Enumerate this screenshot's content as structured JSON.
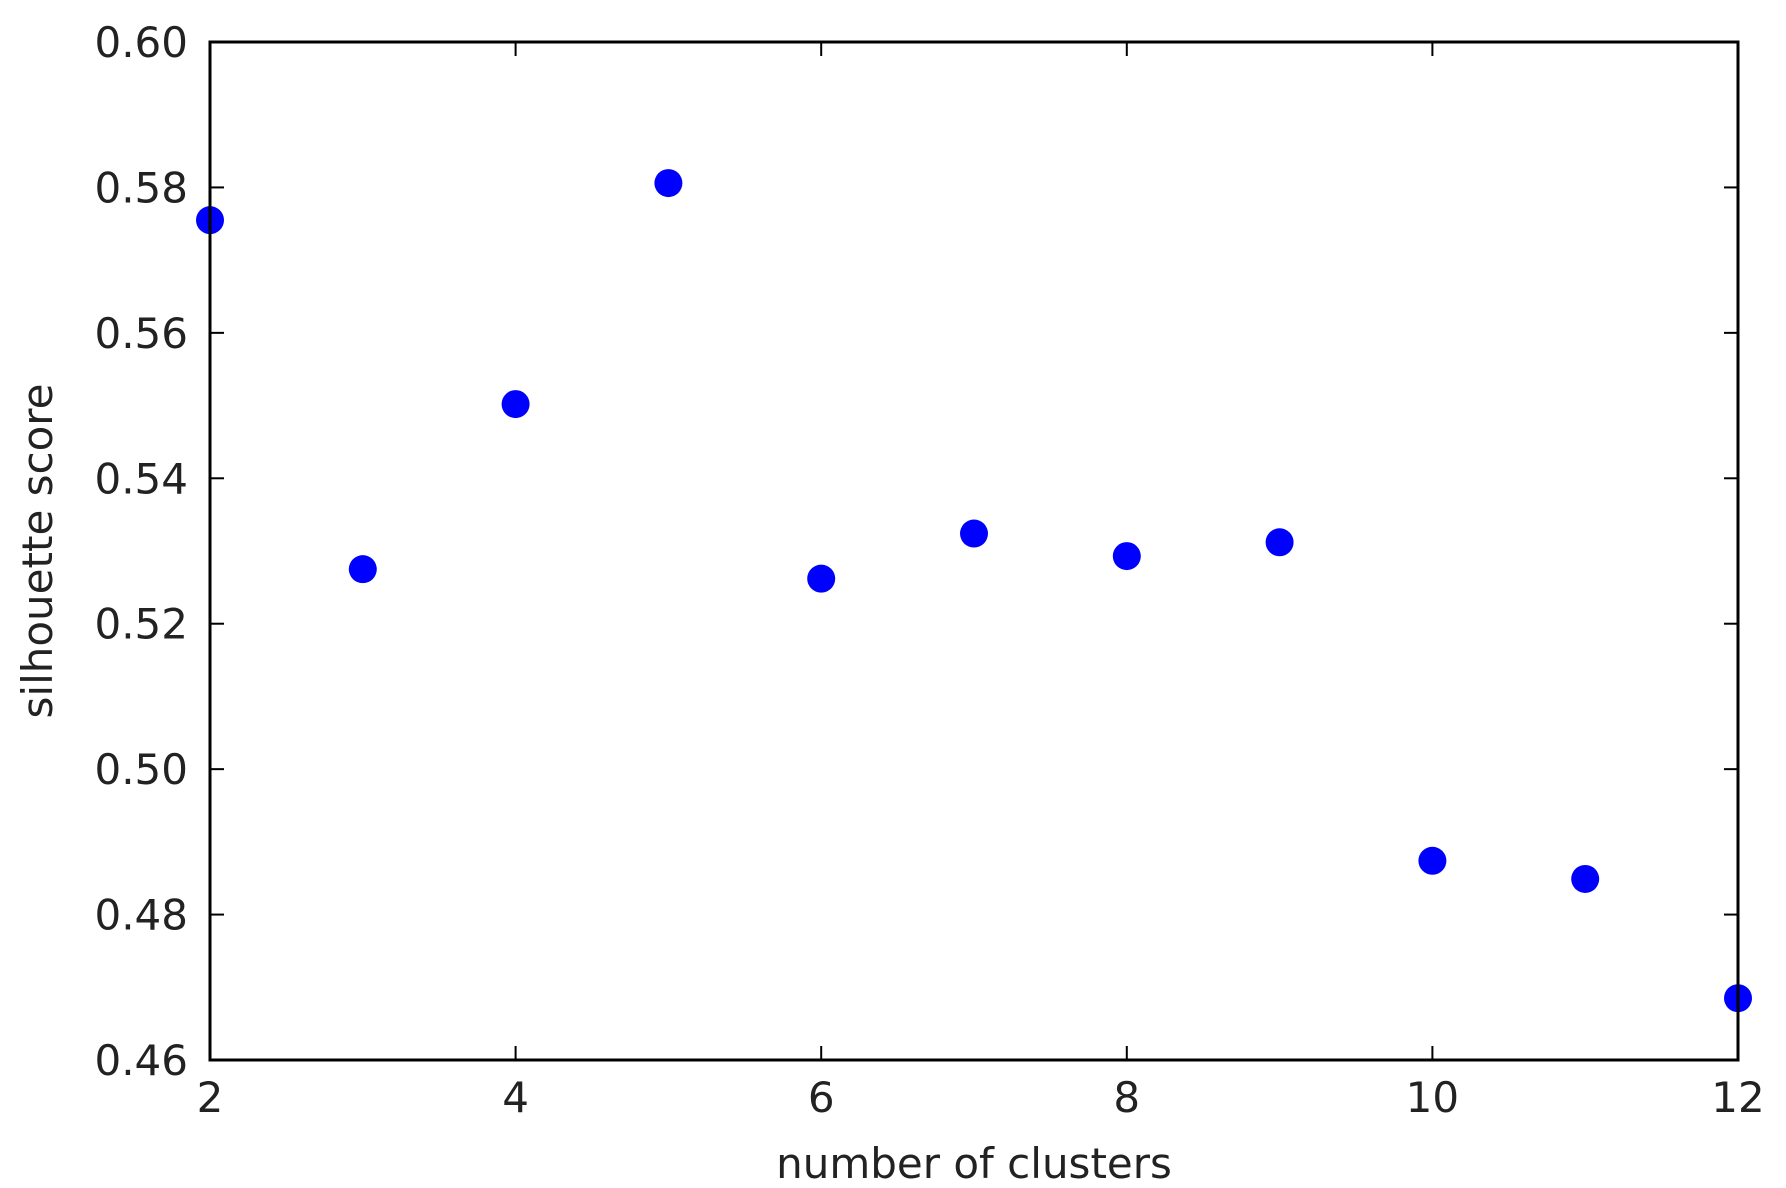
{
  "chart_data": {
    "type": "scatter",
    "title": "",
    "xlabel": "number of clusters",
    "ylabel": "silhouette score",
    "xlim": [
      2,
      12
    ],
    "ylim": [
      0.46,
      0.6
    ],
    "xticks": [
      2,
      4,
      6,
      8,
      10,
      12
    ],
    "yticks": [
      0.46,
      0.48,
      0.5,
      0.52,
      0.54,
      0.56,
      0.58,
      0.6
    ],
    "ytick_labels": [
      "0.46",
      "0.48",
      "0.50",
      "0.52",
      "0.54",
      "0.56",
      "0.58",
      "0.60"
    ],
    "grid": false,
    "legend": false,
    "series": [
      {
        "color": "#0000ff",
        "marker": "circle",
        "points": [
          {
            "x": 2,
            "y": 0.5755
          },
          {
            "x": 3,
            "y": 0.5275
          },
          {
            "x": 4,
            "y": 0.5502
          },
          {
            "x": 5,
            "y": 0.5806
          },
          {
            "x": 6,
            "y": 0.5262
          },
          {
            "x": 7,
            "y": 0.5324
          },
          {
            "x": 8,
            "y": 0.5293
          },
          {
            "x": 9,
            "y": 0.5312
          },
          {
            "x": 10,
            "y": 0.4874
          },
          {
            "x": 11,
            "y": 0.4849
          },
          {
            "x": 12,
            "y": 0.4685
          }
        ]
      }
    ]
  }
}
